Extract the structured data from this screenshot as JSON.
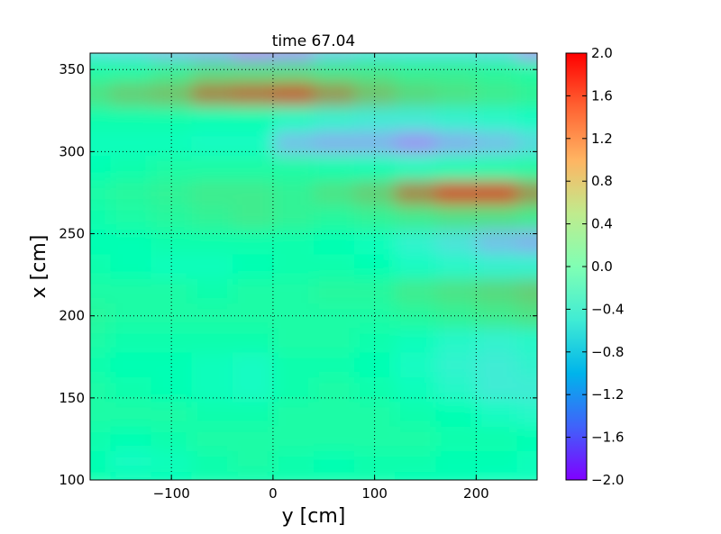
{
  "chart_data": {
    "type": "heatmap",
    "title": "time 67.04",
    "xlabel": "y [cm]",
    "ylabel": "x [cm]",
    "xlim": [
      -180,
      260
    ],
    "ylim": [
      100,
      360
    ],
    "x_ticks": [
      -100,
      0,
      100,
      200
    ],
    "x_tick_labels": [
      "−100",
      "0",
      "100",
      "200"
    ],
    "y_ticks": [
      100,
      150,
      200,
      250,
      300,
      350
    ],
    "y_tick_labels": [
      "100",
      "150",
      "200",
      "250",
      "300",
      "350"
    ],
    "grid": true,
    "colormap": "rainbow",
    "colorbar": {
      "range": [
        -2.0,
        2.0
      ],
      "ticks": [
        2.0,
        1.6,
        1.2,
        0.8,
        0.4,
        0.0,
        -0.4,
        -0.8,
        -1.2,
        -1.6,
        -2.0
      ],
      "tick_labels": [
        "2.0",
        "1.6",
        "1.2",
        "0.8",
        "0.4",
        "0.0",
        "−0.4",
        "−0.8",
        "−1.2",
        "−1.6",
        "−2.0"
      ]
    },
    "x": [
      -180,
      -140,
      -100,
      -60,
      -20,
      20,
      60,
      100,
      140,
      180,
      220,
      260
    ],
    "y": [
      360,
      350,
      335,
      320,
      305,
      290,
      275,
      260,
      245,
      230,
      215,
      200,
      185,
      170,
      155,
      140,
      125,
      110,
      100
    ],
    "values": [
      [
        -0.6,
        -0.7,
        -0.9,
        -1.0,
        -1.3,
        -1.2,
        -0.8,
        -0.6,
        -0.6,
        -0.6,
        -0.7,
        -1.2
      ],
      [
        0.2,
        0.2,
        0.4,
        0.6,
        0.6,
        0.6,
        0.5,
        0.5,
        0.4,
        0.4,
        0.3,
        0.2
      ],
      [
        0.6,
        0.8,
        0.9,
        1.3,
        1.4,
        1.5,
        1.2,
        0.9,
        0.7,
        0.6,
        0.5,
        0.4
      ],
      [
        0.1,
        0.1,
        0.1,
        0.0,
        0.0,
        -0.2,
        -0.4,
        -0.5,
        -0.5,
        -0.4,
        -0.3,
        -0.2
      ],
      [
        -0.1,
        -0.1,
        -0.1,
        -0.2,
        -0.2,
        -0.9,
        -1.0,
        -1.0,
        -1.2,
        -1.0,
        -0.9,
        -0.7
      ],
      [
        0.0,
        0.1,
        0.2,
        0.2,
        0.2,
        0.2,
        0.1,
        0.0,
        -0.1,
        0.0,
        0.1,
        0.2
      ],
      [
        0.2,
        0.3,
        0.4,
        0.5,
        0.5,
        0.4,
        0.6,
        0.8,
        1.3,
        1.6,
        1.6,
        1.2
      ],
      [
        0.1,
        0.2,
        0.3,
        0.4,
        0.5,
        0.4,
        0.3,
        0.4,
        0.5,
        0.6,
        0.6,
        0.5
      ],
      [
        0.0,
        0.0,
        0.1,
        0.1,
        0.1,
        0.1,
        0.0,
        -0.1,
        -0.4,
        -0.6,
        -0.9,
        -1.0
      ],
      [
        0.1,
        0.0,
        -0.1,
        -0.1,
        0.0,
        0.1,
        0.1,
        0.0,
        -0.2,
        -0.3,
        -0.4,
        -0.4
      ],
      [
        0.2,
        0.2,
        0.2,
        0.1,
        0.2,
        0.2,
        0.3,
        0.3,
        0.5,
        0.6,
        0.7,
        0.8
      ],
      [
        0.3,
        0.2,
        0.2,
        0.2,
        0.2,
        0.2,
        0.2,
        0.2,
        0.3,
        0.4,
        0.5,
        0.6
      ],
      [
        0.2,
        0.1,
        0.1,
        0.1,
        0.1,
        0.2,
        0.2,
        0.1,
        -0.1,
        -0.3,
        -0.4,
        -0.3
      ],
      [
        0.1,
        0.0,
        0.0,
        -0.1,
        -0.2,
        0.1,
        0.1,
        0.0,
        -0.2,
        -0.4,
        -0.5,
        -0.4
      ],
      [
        0.2,
        0.1,
        0.0,
        -0.1,
        -0.2,
        0.1,
        0.2,
        0.1,
        -0.1,
        -0.3,
        -0.5,
        -0.5
      ],
      [
        0.2,
        0.2,
        0.2,
        0.1,
        0.1,
        0.2,
        0.2,
        0.2,
        0.1,
        0.0,
        -0.2,
        -0.3
      ],
      [
        0.1,
        0.0,
        0.1,
        0.2,
        0.2,
        0.2,
        0.2,
        0.2,
        0.2,
        0.1,
        0.1,
        0.0
      ],
      [
        0.0,
        -0.2,
        -0.1,
        0.1,
        0.2,
        0.1,
        0.0,
        0.1,
        0.1,
        0.0,
        0.0,
        -0.1
      ],
      [
        0.1,
        0.0,
        0.0,
        0.1,
        0.1,
        0.1,
        0.1,
        0.1,
        0.0,
        0.0,
        -0.1,
        -0.1
      ]
    ]
  }
}
